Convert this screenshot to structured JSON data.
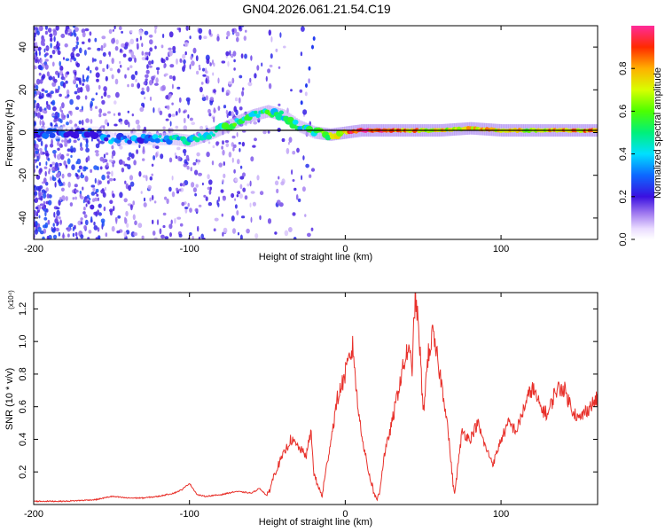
{
  "title": "GN04.2026.061.21.54.C19",
  "chart_data": [
    {
      "type": "heatmap",
      "name": "spectrogram",
      "xlabel": "Height of straight line (km)",
      "ylabel": "Frequency (Hz)",
      "xlim": [
        -200,
        162
      ],
      "ylim": [
        -50,
        50
      ],
      "xticks": [
        -200,
        -100,
        0,
        100
      ],
      "xtick_labels": [
        "-200",
        "-100",
        "0",
        "100"
      ],
      "yticks": [
        -40,
        -20,
        0,
        20,
        40
      ],
      "ytick_labels": [
        "-40",
        "-20",
        "0",
        "20",
        "40"
      ],
      "colorbar": {
        "label": "Normalized spectral amplitude",
        "range": [
          0,
          1
        ],
        "ticks": [
          0.0,
          0.2,
          0.4,
          0.6,
          0.8
        ],
        "tick_labels": [
          "0.0",
          "0.2",
          "0.4",
          "0.6",
          "0.8"
        ]
      },
      "ridge": {
        "x": [
          -200,
          -160,
          -150,
          -130,
          -110,
          -100,
          -85,
          -70,
          -60,
          -50,
          -40,
          -30,
          -20,
          -10,
          0,
          10,
          20,
          40,
          60,
          80,
          100,
          120,
          140,
          162
        ],
        "freq": [
          0,
          0,
          -3,
          -3,
          -3,
          -4,
          0,
          5,
          8,
          10,
          8,
          3,
          0,
          -1,
          0,
          1,
          1,
          1,
          1,
          2,
          1,
          1,
          1,
          1
        ],
        "amplitude": [
          0.2,
          0.2,
          0.3,
          0.3,
          0.4,
          0.4,
          0.45,
          0.5,
          0.5,
          0.5,
          0.45,
          0.45,
          0.5,
          0.6,
          0.8,
          0.95,
          0.95,
          0.8,
          0.7,
          0.75,
          0.7,
          0.7,
          0.75,
          0.8
        ]
      }
    },
    {
      "type": "line",
      "name": "snr",
      "xlabel": "Height of straight line (km)",
      "ylabel": "SNR (10 * v/v)",
      "y_multiplier": "(x10⁴)",
      "xlim": [
        -200,
        162
      ],
      "ylim": [
        0,
        1.3
      ],
      "xticks": [
        -200,
        -100,
        0,
        100
      ],
      "xtick_labels": [
        "-200",
        "-100",
        "0",
        "100"
      ],
      "yticks": [
        0.2,
        0.4,
        0.6,
        0.8,
        1.0,
        1.2
      ],
      "ytick_labels": [
        "0.2",
        "0.4",
        "0.6",
        "0.8",
        "1.0",
        "1.2"
      ],
      "series": [
        {
          "name": "SNR",
          "color": "#e8302a",
          "x": [
            -200,
            -180,
            -160,
            -150,
            -140,
            -130,
            -120,
            -110,
            -105,
            -100,
            -95,
            -90,
            -80,
            -70,
            -60,
            -55,
            -50,
            -45,
            -40,
            -35,
            -30,
            -25,
            -22,
            -20,
            -15,
            -10,
            -5,
            0,
            5,
            8,
            12,
            15,
            20,
            22,
            25,
            30,
            35,
            40,
            43,
            45,
            48,
            50,
            53,
            56,
            60,
            65,
            68,
            70,
            75,
            80,
            85,
            90,
            95,
            100,
            105,
            110,
            115,
            120,
            125,
            130,
            135,
            140,
            145,
            150,
            155,
            162
          ],
          "values": [
            0.02,
            0.02,
            0.03,
            0.05,
            0.04,
            0.04,
            0.05,
            0.07,
            0.09,
            0.13,
            0.06,
            0.05,
            0.06,
            0.08,
            0.07,
            0.1,
            0.05,
            0.2,
            0.3,
            0.4,
            0.35,
            0.3,
            0.45,
            0.18,
            0.05,
            0.35,
            0.65,
            0.8,
            0.97,
            0.6,
            0.35,
            0.2,
            0.02,
            0.08,
            0.3,
            0.5,
            0.75,
            0.95,
            0.85,
            1.3,
            0.95,
            0.55,
            0.9,
            1.04,
            0.85,
            0.55,
            0.25,
            0.05,
            0.45,
            0.4,
            0.5,
            0.35,
            0.25,
            0.4,
            0.5,
            0.45,
            0.6,
            0.72,
            0.6,
            0.55,
            0.7,
            0.72,
            0.6,
            0.52,
            0.58,
            0.65
          ]
        }
      ]
    }
  ]
}
